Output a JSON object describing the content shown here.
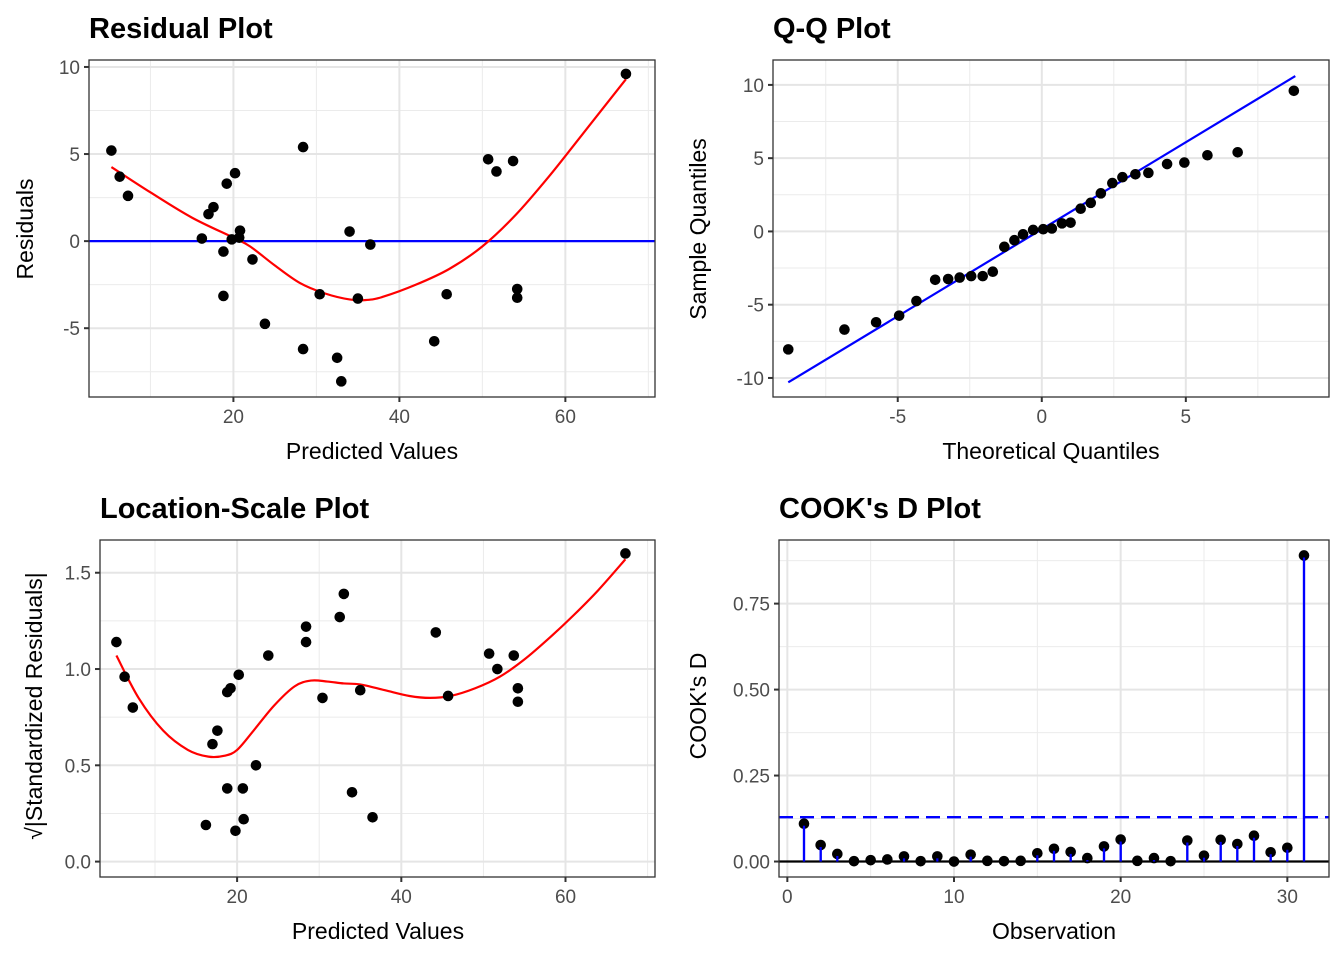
{
  "chart_data": [
    {
      "id": "residual",
      "type": "scatter",
      "title": "Residual Plot",
      "xlabel": "Predicted Values",
      "ylabel": "Residuals",
      "xlim": [
        2.6,
        70.8
      ],
      "ylim": [
        -8.95,
        10.4
      ],
      "xticks": [
        20,
        40,
        60
      ],
      "xminor": [
        10,
        30,
        50,
        70
      ],
      "yticks": [
        -5,
        0,
        5,
        10
      ],
      "yminor": [
        -7.5,
        -2.5,
        2.5,
        7.5
      ],
      "hline": {
        "y": 0,
        "color": "#0000ff"
      },
      "points": [
        [
          5.3,
          5.2
        ],
        [
          6.3,
          3.7
        ],
        [
          7.3,
          2.6
        ],
        [
          16.2,
          0.15
        ],
        [
          17.0,
          1.55
        ],
        [
          17.6,
          1.95
        ],
        [
          18.8,
          -0.6
        ],
        [
          18.8,
          -3.15
        ],
        [
          19.2,
          3.3
        ],
        [
          19.8,
          0.1
        ],
        [
          20.2,
          3.9
        ],
        [
          20.8,
          0.6
        ],
        [
          20.7,
          0.2
        ],
        [
          22.3,
          -1.05
        ],
        [
          23.8,
          -4.75
        ],
        [
          28.4,
          5.4
        ],
        [
          28.4,
          -6.2
        ],
        [
          30.4,
          -3.05
        ],
        [
          32.5,
          -6.7
        ],
        [
          33.0,
          -8.05
        ],
        [
          34.0,
          0.55
        ],
        [
          35.0,
          -3.3
        ],
        [
          36.5,
          -0.2
        ],
        [
          44.2,
          -5.75
        ],
        [
          45.7,
          -3.05
        ],
        [
          50.7,
          4.7
        ],
        [
          51.7,
          4.0
        ],
        [
          53.7,
          4.6
        ],
        [
          54.2,
          -2.75
        ],
        [
          54.2,
          -3.25
        ],
        [
          67.3,
          9.6
        ]
      ],
      "smooth": {
        "color": "#ff0000",
        "x": [
          5.3,
          10,
          15,
          20,
          22,
          25,
          28,
          31,
          34,
          36,
          38,
          42,
          46,
          50,
          54,
          58,
          62,
          67.3
        ],
        "y": [
          4.25,
          2.8,
          1.35,
          0.2,
          -0.3,
          -1.4,
          -2.4,
          -3.0,
          -3.35,
          -3.38,
          -3.2,
          -2.5,
          -1.6,
          -0.3,
          1.5,
          3.7,
          6.1,
          9.3
        ]
      }
    },
    {
      "id": "qq",
      "type": "scatter",
      "title": "Q-Q Plot",
      "xlabel": "Theoretical Quantiles",
      "ylabel": "Sample Quantiles",
      "xlim": [
        -9.33,
        9.97
      ],
      "ylim": [
        -11.3,
        11.7
      ],
      "xticks": [
        -5,
        0,
        5
      ],
      "xminor": [
        -7.5,
        -2.5,
        2.5,
        7.5
      ],
      "yticks": [
        -10,
        -5,
        0,
        5,
        10
      ],
      "yminor": [
        -7.5,
        -2.5,
        2.5,
        7.5
      ],
      "reference_line": {
        "color": "#0000ff",
        "x": [
          -8.8,
          8.8
        ],
        "y": [
          -10.3,
          10.6
        ]
      },
      "points": [
        [
          -8.8,
          -8.05
        ],
        [
          -6.85,
          -6.7
        ],
        [
          -5.75,
          -6.2
        ],
        [
          -4.95,
          -5.75
        ],
        [
          -4.35,
          -4.75
        ],
        [
          -3.7,
          -3.3
        ],
        [
          -3.25,
          -3.25
        ],
        [
          -2.85,
          -3.15
        ],
        [
          -2.45,
          -3.05
        ],
        [
          -2.05,
          -3.05
        ],
        [
          -1.7,
          -2.75
        ],
        [
          -1.3,
          -1.05
        ],
        [
          -0.95,
          -0.6
        ],
        [
          -0.65,
          -0.2
        ],
        [
          -0.3,
          0.1
        ],
        [
          0.05,
          0.15
        ],
        [
          0.35,
          0.2
        ],
        [
          0.7,
          0.55
        ],
        [
          1.0,
          0.6
        ],
        [
          1.35,
          1.55
        ],
        [
          1.7,
          1.95
        ],
        [
          2.05,
          2.6
        ],
        [
          2.45,
          3.3
        ],
        [
          2.8,
          3.7
        ],
        [
          3.25,
          3.9
        ],
        [
          3.7,
          4.0
        ],
        [
          4.35,
          4.6
        ],
        [
          4.95,
          4.7
        ],
        [
          5.75,
          5.2
        ],
        [
          6.8,
          5.4
        ],
        [
          8.75,
          9.6
        ]
      ]
    },
    {
      "id": "location-scale",
      "type": "scatter",
      "title": "Location-Scale Plot",
      "xlabel": "Predicted Values",
      "ylabel": "√|Standardized Residuals|",
      "xlim": [
        3.3,
        70.9
      ],
      "ylim": [
        -0.08,
        1.67
      ],
      "xticks": [
        20,
        40,
        60
      ],
      "xminor": [
        10,
        30,
        50,
        70
      ],
      "yticks": [
        0.0,
        0.5,
        1.0,
        1.5
      ],
      "ytick_labels": [
        "0.0",
        "0.5",
        "1.0",
        "1.5"
      ],
      "yminor": [
        0.25,
        0.75,
        1.25
      ],
      "points": [
        [
          5.3,
          1.14
        ],
        [
          6.3,
          0.96
        ],
        [
          7.3,
          0.8
        ],
        [
          16.2,
          0.19
        ],
        [
          17.0,
          0.61
        ],
        [
          17.6,
          0.68
        ],
        [
          18.8,
          0.38
        ],
        [
          18.8,
          0.88
        ],
        [
          19.2,
          0.9
        ],
        [
          19.8,
          0.16
        ],
        [
          20.2,
          0.97
        ],
        [
          20.7,
          0.38
        ],
        [
          20.8,
          0.22
        ],
        [
          22.3,
          0.5
        ],
        [
          23.8,
          1.07
        ],
        [
          28.4,
          1.22
        ],
        [
          28.4,
          1.14
        ],
        [
          30.4,
          0.85
        ],
        [
          32.5,
          1.27
        ],
        [
          33.0,
          1.39
        ],
        [
          34.0,
          0.36
        ],
        [
          35.0,
          0.89
        ],
        [
          36.5,
          0.23
        ],
        [
          44.2,
          1.19
        ],
        [
          45.7,
          0.86
        ],
        [
          50.7,
          1.08
        ],
        [
          51.7,
          1.0
        ],
        [
          53.7,
          1.07
        ],
        [
          54.2,
          0.9
        ],
        [
          54.2,
          0.83
        ],
        [
          67.3,
          1.6
        ]
      ],
      "smooth": {
        "color": "#ff0000",
        "x": [
          5.3,
          8,
          11,
          14,
          16.5,
          18.5,
          20,
          22,
          24.5,
          27,
          29,
          31,
          33,
          35,
          38,
          41,
          43.5,
          46,
          49,
          52,
          55,
          58,
          61,
          64,
          67.3
        ],
        "y": [
          1.07,
          0.85,
          0.68,
          0.58,
          0.545,
          0.55,
          0.58,
          0.68,
          0.81,
          0.91,
          0.94,
          0.935,
          0.925,
          0.92,
          0.89,
          0.86,
          0.85,
          0.86,
          0.9,
          0.96,
          1.05,
          1.16,
          1.28,
          1.41,
          1.57
        ]
      }
    },
    {
      "id": "cooks-d",
      "type": "bar",
      "subtype": "lollipop",
      "title": "COOK's D Plot",
      "xlabel": "Observation",
      "ylabel": "COOK's D",
      "xlim": [
        -0.5,
        32.5
      ],
      "ylim": [
        -0.045,
        0.935
      ],
      "xticks": [
        0,
        10,
        20,
        30
      ],
      "xminor": [
        5,
        15,
        25
      ],
      "yticks": [
        0.0,
        0.25,
        0.5,
        0.75
      ],
      "ytick_labels": [
        "0.00",
        "0.25",
        "0.50",
        "0.75"
      ],
      "yminor": [
        0.125,
        0.375,
        0.625,
        0.875
      ],
      "threshold": {
        "y": 0.129,
        "color": "#0000ff",
        "style": "dashed"
      },
      "stem_color": "#0000ff",
      "x": [
        1,
        2,
        3,
        4,
        5,
        6,
        7,
        8,
        9,
        10,
        11,
        12,
        13,
        14,
        15,
        16,
        17,
        18,
        19,
        20,
        21,
        22,
        23,
        24,
        25,
        26,
        27,
        28,
        29,
        30,
        31
      ],
      "values": [
        0.11,
        0.048,
        0.022,
        0.001,
        0.004,
        0.006,
        0.015,
        0.001,
        0.015,
        0.0,
        0.02,
        0.002,
        0.001,
        0.002,
        0.024,
        0.037,
        0.028,
        0.01,
        0.044,
        0.064,
        0.002,
        0.01,
        0.001,
        0.061,
        0.017,
        0.063,
        0.051,
        0.075,
        0.027,
        0.04,
        0.89
      ]
    }
  ]
}
